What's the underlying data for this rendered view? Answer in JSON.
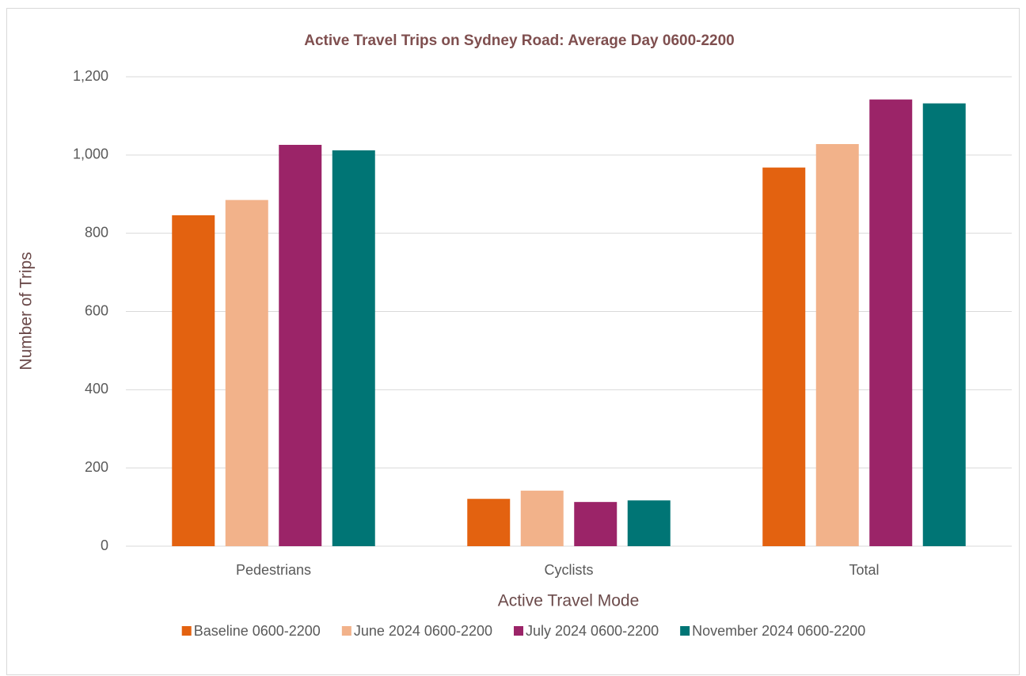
{
  "chart_data": {
    "type": "bar",
    "title": "Active Travel Trips on Sydney Road: Average Day 0600-2200",
    "xlabel": "Active Travel Mode",
    "ylabel": "Number of Trips",
    "categories": [
      "Pedestrians",
      "Cyclists",
      "Total"
    ],
    "series": [
      {
        "name": "Baseline 0600-2200",
        "color": "#e36210",
        "values": [
          846,
          121,
          968
        ]
      },
      {
        "name": "June 2024 0600-2200",
        "color": "#f2b28a",
        "values": [
          885,
          142,
          1028
        ]
      },
      {
        "name": "July 2024 0600-2200",
        "color": "#9b2468",
        "values": [
          1026,
          113,
          1142
        ]
      },
      {
        "name": "November 2024 0600-2200",
        "color": "#007575",
        "values": [
          1012,
          117,
          1132
        ]
      }
    ],
    "ylim": [
      0,
      1200
    ],
    "yticks": [
      0,
      200,
      400,
      600,
      800,
      {
        "value": 1000,
        "label": "1,000"
      },
      {
        "value": 1200,
        "label": "1,200"
      }
    ],
    "grid": true,
    "legend": "bottom"
  }
}
